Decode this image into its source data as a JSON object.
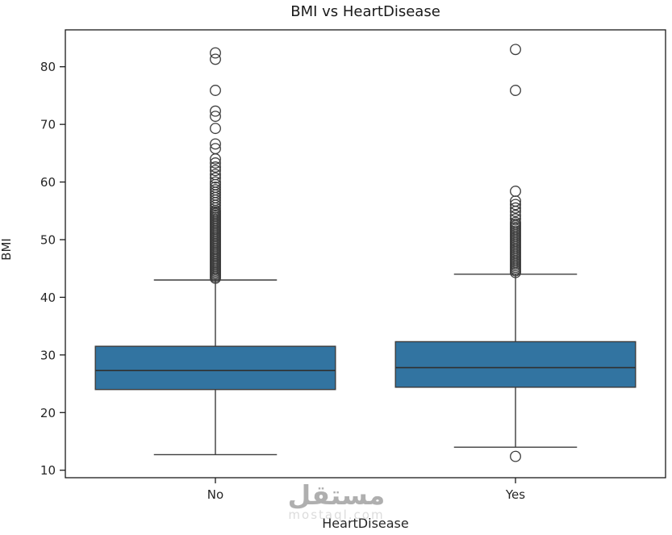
{
  "title": "BMI vs HeartDisease",
  "watermark": {
    "text": "مستقل",
    "subtext": "mostaql.com"
  },
  "chart_data": {
    "type": "boxplot",
    "title": "BMI vs HeartDisease",
    "xlabel": "HeartDisease",
    "ylabel": "BMI",
    "categories": [
      "No",
      "Yes"
    ],
    "ylim": [
      8.7,
      86.4
    ],
    "yticks": [
      10,
      20,
      30,
      40,
      50,
      60,
      70,
      80
    ],
    "grid": false,
    "legend": null,
    "box_fill_color": "#3274a1",
    "box_edge_color": "#3c3c3c",
    "median_color": "#303030",
    "spine_color": "#1a1a1a",
    "boxes": [
      {
        "category": "No",
        "q1": 24.0,
        "median": 27.3,
        "q3": 31.5,
        "whisker_low": 12.7,
        "whisker_high": 43.0,
        "outliers": [
          43.3,
          43.55,
          43.8,
          44.05,
          44.3,
          44.55,
          44.8,
          45.05,
          45.3,
          45.55,
          45.8,
          46.05,
          46.3,
          46.55,
          46.8,
          47.05,
          47.3,
          47.55,
          47.8,
          48.05,
          48.3,
          48.55,
          48.8,
          49.05,
          49.3,
          49.55,
          49.8,
          50.05,
          50.3,
          50.55,
          50.8,
          51.05,
          51.3,
          51.55,
          51.8,
          52.05,
          52.3,
          52.55,
          52.8,
          53.05,
          53.3,
          53.55,
          53.8,
          54.05,
          54.3,
          54.55,
          54.8,
          55.05,
          55.5,
          55.95,
          56.4,
          56.85,
          57.3,
          57.75,
          58.2,
          58.65,
          59.1,
          59.55,
          60.0,
          60.7,
          61.3,
          62.0,
          62.6,
          63.3,
          64.0,
          65.8,
          66.6,
          69.3,
          71.4,
          72.3,
          75.9,
          81.3,
          82.4
        ]
      },
      {
        "category": "Yes",
        "q1": 24.4,
        "median": 27.8,
        "q3": 32.3,
        "whisker_low": 14.0,
        "whisker_high": 44.0,
        "outliers": [
          12.4,
          44.3,
          44.6,
          44.9,
          45.2,
          45.5,
          45.8,
          46.1,
          46.4,
          46.7,
          47.0,
          47.3,
          47.6,
          47.9,
          48.2,
          48.5,
          48.8,
          49.1,
          49.4,
          49.7,
          50.0,
          50.3,
          50.6,
          50.9,
          51.2,
          51.5,
          51.8,
          52.1,
          52.4,
          52.7,
          53.0,
          53.6,
          54.2,
          54.9,
          55.5,
          56.1,
          56.7,
          58.4,
          75.9,
          83.0
        ]
      }
    ]
  }
}
